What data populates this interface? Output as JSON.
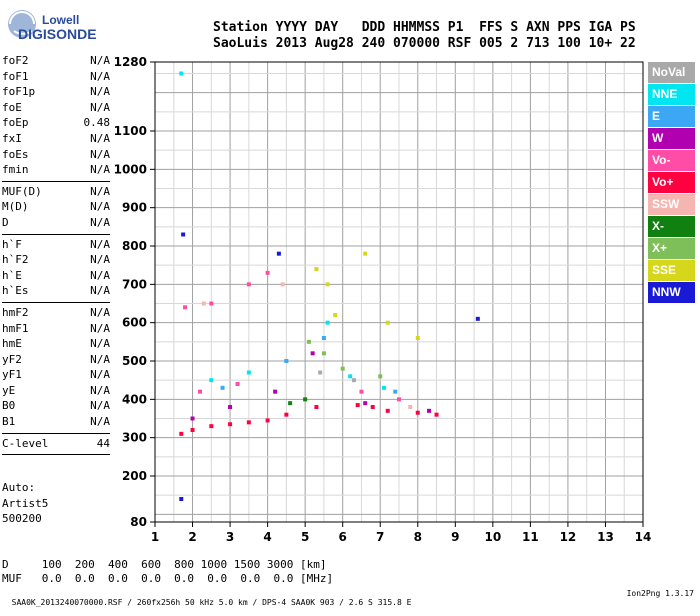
{
  "logo": {
    "line1": "Lowell",
    "line2": "DIGISONDE"
  },
  "header": {
    "line1": "Station YYYY DAY   DDD HHMMSS P1  FFS S AXN PPS IGA PS",
    "line2": "SaoLuis 2013 Aug28 240 070000 RSF 005 2 713 100 10+ 22"
  },
  "params": [
    [
      {
        "k": "foF2",
        "v": "N/A"
      },
      {
        "k": "foF1",
        "v": "N/A"
      },
      {
        "k": "foF1p",
        "v": "N/A"
      },
      {
        "k": "foE",
        "v": "N/A"
      },
      {
        "k": "foEp",
        "v": "0.48"
      },
      {
        "k": "fxI",
        "v": "N/A"
      },
      {
        "k": "foEs",
        "v": "N/A"
      },
      {
        "k": "fmin",
        "v": "N/A"
      }
    ],
    [
      {
        "k": "MUF(D)",
        "v": "N/A"
      },
      {
        "k": "M(D)",
        "v": "N/A"
      },
      {
        "k": "D",
        "v": "N/A"
      }
    ],
    [
      {
        "k": "h`F",
        "v": "N/A"
      },
      {
        "k": "h`F2",
        "v": "N/A"
      },
      {
        "k": "h`E",
        "v": "N/A"
      },
      {
        "k": "h`Es",
        "v": "N/A"
      }
    ],
    [
      {
        "k": "hmF2",
        "v": "N/A"
      },
      {
        "k": "hmF1",
        "v": "N/A"
      },
      {
        "k": "hmE",
        "v": "N/A"
      },
      {
        "k": "yF2",
        "v": "N/A"
      },
      {
        "k": "yF1",
        "v": "N/A"
      },
      {
        "k": "yE",
        "v": "N/A"
      },
      {
        "k": "B0",
        "v": "N/A"
      },
      {
        "k": "B1",
        "v": "N/A"
      }
    ],
    [
      {
        "k": "C-level",
        "v": "44"
      }
    ]
  ],
  "auto": {
    "line1": "Auto:",
    "line2": "Artist5",
    "line3": "500200"
  },
  "bottom": {
    "line1": "D     100  200  400  600  800 1000 1500 3000 [km]",
    "line2": "MUF   0.0  0.0  0.0  0.0  0.0  0.0  0.0  0.0 [MHz]"
  },
  "footer": {
    "text": "SAA0K_2013240070000.RSF / 260fx256h 50 kHz 5.0 km / DPS-4 SAA0K 903 / 2.6 S 315.8 E",
    "version": "Ion2Png 1.3.17"
  },
  "legend": [
    {
      "label": "NoVal",
      "color": "#a9a9a9"
    },
    {
      "label": "NNE",
      "color": "#00e5f0"
    },
    {
      "label": "E",
      "color": "#3ca8f5"
    },
    {
      "label": "W",
      "color": "#b000b0"
    },
    {
      "label": "Vo-",
      "color": "#ff4ca6"
    },
    {
      "label": "Vo+",
      "color": "#ff0040"
    },
    {
      "label": "SSW",
      "color": "#f5b5b0"
    },
    {
      "label": "X-",
      "color": "#108010"
    },
    {
      "label": "X+",
      "color": "#7fbf5a"
    },
    {
      "label": "SSE",
      "color": "#d6d61a"
    },
    {
      "label": "NNW",
      "color": "#1a1ad6"
    }
  ],
  "chart_data": {
    "type": "scatter",
    "xlim": [
      1,
      14
    ],
    "x_ticks": [
      1,
      2,
      3,
      4,
      5,
      6,
      7,
      8,
      9,
      10,
      11,
      12,
      13,
      14
    ],
    "y_ticks": [
      80,
      200,
      300,
      400,
      500,
      600,
      700,
      800,
      900,
      1000,
      1100,
      1280
    ],
    "ylim": [
      80,
      1280
    ],
    "grid": true,
    "legend_placement": "right",
    "series": [
      {
        "name": "Vo+",
        "values": [
          [
            1.7,
            310
          ],
          [
            2.0,
            320
          ],
          [
            2.5,
            330
          ],
          [
            3.0,
            335
          ],
          [
            3.5,
            340
          ],
          [
            4.0,
            345
          ],
          [
            4.5,
            360
          ],
          [
            5.3,
            380
          ],
          [
            6.4,
            385
          ],
          [
            6.8,
            380
          ],
          [
            7.2,
            370
          ],
          [
            8.0,
            365
          ],
          [
            8.5,
            360
          ]
        ]
      },
      {
        "name": "Vo-",
        "values": [
          [
            1.8,
            640
          ],
          [
            2.5,
            650
          ],
          [
            3.5,
            700
          ],
          [
            4.0,
            730
          ],
          [
            2.2,
            420
          ],
          [
            3.2,
            440
          ],
          [
            6.5,
            420
          ],
          [
            7.5,
            400
          ]
        ]
      },
      {
        "name": "W",
        "values": [
          [
            2.0,
            350
          ],
          [
            3.0,
            380
          ],
          [
            4.2,
            420
          ],
          [
            5.2,
            520
          ],
          [
            6.6,
            390
          ],
          [
            8.3,
            370
          ]
        ]
      },
      {
        "name": "NNE",
        "values": [
          [
            1.7,
            1250
          ],
          [
            2.5,
            450
          ],
          [
            3.5,
            470
          ],
          [
            5.6,
            600
          ],
          [
            6.2,
            460
          ],
          [
            7.1,
            430
          ]
        ]
      },
      {
        "name": "E",
        "values": [
          [
            2.8,
            430
          ],
          [
            4.5,
            500
          ],
          [
            5.5,
            560
          ],
          [
            7.4,
            420
          ]
        ]
      },
      {
        "name": "SSE",
        "values": [
          [
            5.3,
            740
          ],
          [
            5.6,
            700
          ],
          [
            6.6,
            780
          ],
          [
            7.2,
            600
          ],
          [
            8.0,
            560
          ],
          [
            5.8,
            620
          ]
        ]
      },
      {
        "name": "X+",
        "values": [
          [
            5.1,
            550
          ],
          [
            5.5,
            520
          ],
          [
            6.0,
            480
          ],
          [
            7.0,
            460
          ]
        ]
      },
      {
        "name": "X-",
        "values": [
          [
            4.6,
            390
          ],
          [
            5.0,
            400
          ]
        ]
      },
      {
        "name": "NNW",
        "values": [
          [
            1.7,
            140
          ],
          [
            1.75,
            830
          ],
          [
            4.3,
            780
          ],
          [
            9.6,
            610
          ]
        ]
      },
      {
        "name": "SSW",
        "values": [
          [
            2.3,
            650
          ],
          [
            4.4,
            700
          ],
          [
            7.8,
            380
          ]
        ]
      },
      {
        "name": "NoVal",
        "values": [
          [
            5.4,
            470
          ],
          [
            6.3,
            450
          ]
        ]
      }
    ]
  }
}
